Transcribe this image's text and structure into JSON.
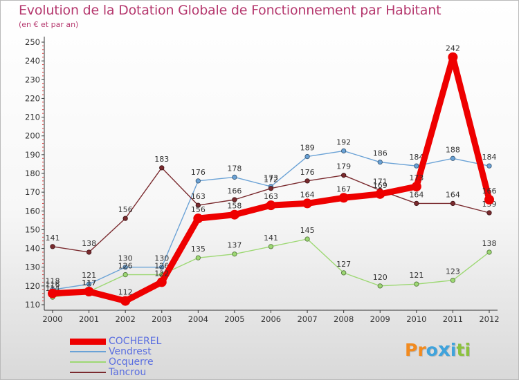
{
  "header": {
    "title": "Evolution de la Dotation Globale de Fonctionnement par Habitant",
    "subtitle": "(en € et par an)"
  },
  "logo": {
    "text": "Proxiti",
    "letters": [
      "P",
      "r",
      "o",
      "x",
      "i",
      "t",
      "i"
    ],
    "letter_colors": [
      "#f28a1e",
      "#f28a1e",
      "#3fa3dc",
      "#3fa3dc",
      "#3fa3dc",
      "#8cc23f",
      "#8cc23f"
    ]
  },
  "chart_data": {
    "type": "line",
    "title": "Evolution de la Dotation Globale de Fonctionnement par Habitant",
    "subtitle": "(en € et par an)",
    "xlabel": "",
    "ylabel": "",
    "ylim": [
      110,
      250
    ],
    "yticks": [
      110,
      120,
      130,
      140,
      150,
      160,
      170,
      180,
      190,
      200,
      210,
      220,
      230,
      240,
      250
    ],
    "grid": false,
    "legend_position": "bottom-left",
    "x": [
      "2000",
      "2001",
      "2002",
      "2003",
      "2004",
      "2005",
      "2006",
      "2007",
      "2008",
      "2009",
      "2010",
      "2011",
      "2012"
    ],
    "series": [
      {
        "name": "COCHEREL",
        "color": "#ee0000",
        "emphasis": true,
        "values": [
          116,
          117,
          112,
          122,
          156,
          158,
          163,
          164,
          167,
          169,
          173,
          242,
          166
        ]
      },
      {
        "name": "Vendrest",
        "color": "#6aa2d6",
        "emphasis": false,
        "values": [
          118,
          121,
          130,
          130,
          176,
          178,
          173,
          189,
          192,
          186,
          184,
          188,
          184
        ]
      },
      {
        "name": "Ocquerre",
        "color": "#9dd873",
        "emphasis": false,
        "values": [
          114,
          117,
          126,
          126,
          135,
          137,
          141,
          145,
          127,
          120,
          121,
          123,
          138
        ]
      },
      {
        "name": "Tancrou",
        "color": "#7a2a2e",
        "emphasis": false,
        "values": [
          141,
          138,
          156,
          183,
          163,
          166,
          172,
          176,
          179,
          171,
          164,
          164,
          159
        ]
      }
    ]
  }
}
